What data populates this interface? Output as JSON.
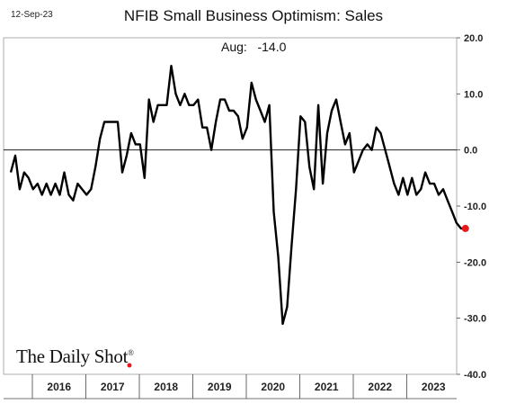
{
  "header": {
    "date": "12-Sep-23",
    "title": "NFIB Small Business Optimism: Sales",
    "annotation_label": "Aug:",
    "annotation_value": "-14.0"
  },
  "brand": {
    "name": "The Daily Shot",
    "mark": "®"
  },
  "colors": {
    "line": "#000000",
    "last_point": "#e8191c",
    "zero_line": "#000000"
  },
  "chart_data": {
    "type": "line",
    "title": "NFIB Small Business Optimism: Sales",
    "x_start": "2016-01",
    "x_end": "2023-08",
    "x_tick_labels": [
      "2016",
      "2017",
      "2018",
      "2019",
      "2020",
      "2021",
      "2022",
      "2023"
    ],
    "y_tick_labels": [
      "20.0",
      "10.0",
      "0.0",
      "-10.0",
      "-20.0",
      "-30.0",
      "-40.0"
    ],
    "y_ticks": [
      20,
      10,
      0,
      -10,
      -20,
      -30,
      -40
    ],
    "ylim": [
      -40,
      20
    ],
    "y_axis_side": "right",
    "grid": false,
    "zero_line": true,
    "highlight_last_point": true,
    "series": [
      {
        "values": [
          -4,
          -1,
          -7,
          -4,
          -5,
          -7,
          -6,
          -8,
          -6,
          -8,
          -6,
          -8,
          -4,
          -8,
          -9,
          -6,
          -7,
          -8,
          -7,
          -3,
          2,
          5,
          5,
          5,
          5,
          -4,
          -1,
          3,
          1,
          1,
          -5,
          9,
          5,
          8,
          8,
          8,
          15,
          10,
          8,
          10,
          8,
          8,
          9,
          4,
          4,
          0,
          5,
          9,
          9,
          7,
          7,
          6,
          2,
          4,
          12,
          9,
          7,
          5,
          8,
          -11,
          -19,
          -31,
          -28,
          -17,
          -7,
          6,
          5,
          -3,
          -7,
          8,
          -6,
          3,
          7,
          9,
          5,
          1,
          3,
          -4,
          -2,
          0,
          1,
          0,
          4,
          3,
          0,
          -3,
          -6,
          -8,
          -5,
          -8,
          -5,
          -8,
          -7,
          -4,
          -6,
          -6,
          -8,
          -7,
          -9,
          -11,
          -13,
          -14,
          -14
        ]
      }
    ]
  }
}
